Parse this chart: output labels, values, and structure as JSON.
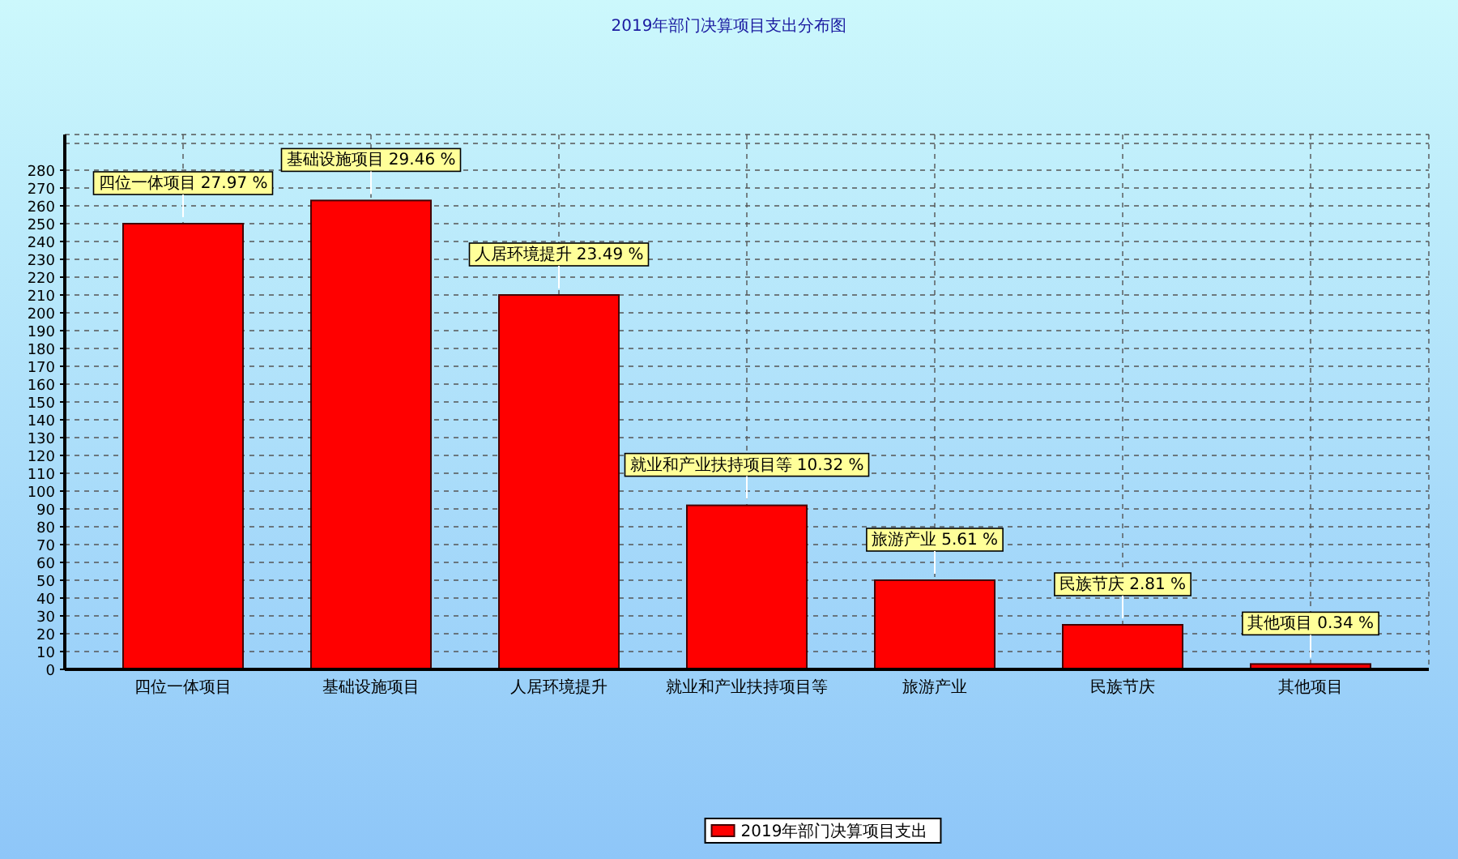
{
  "chart_data": {
    "type": "bar",
    "title": "2019年部门决算项目支出分布图",
    "categories": [
      "四位一体项目",
      "基础设施项目",
      "人居环境提升",
      "就业和产业扶持项目等",
      "旅游产业",
      "民族节庆",
      "其他项目"
    ],
    "series": [
      {
        "name": "2019年部门决算项目支出",
        "color": "#ff0000",
        "values": [
          250,
          263,
          210,
          92,
          50,
          25,
          3
        ]
      }
    ],
    "ylim": [
      0,
      300
    ],
    "yticks": [
      0,
      10,
      20,
      30,
      40,
      50,
      60,
      70,
      80,
      90,
      100,
      110,
      120,
      130,
      140,
      150,
      160,
      170,
      180,
      190,
      200,
      210,
      220,
      230,
      240,
      250,
      260,
      270,
      280
    ],
    "grid": true,
    "legend": "bottom",
    "annotations": [
      {
        "text": "四位一体项目 27.97 %",
        "x": "四位一体项目",
        "y": 250
      },
      {
        "text": "基础设施项目 29.46 %",
        "x": "基础设施项目",
        "y": 263
      },
      {
        "text": "人居环境提升 23.49 %",
        "x": "人居环境提升",
        "y": 210
      },
      {
        "text": "就业和产业扶持项目等 10.32 %",
        "x": "就业和产业扶持项目等",
        "y": 92
      },
      {
        "text": "旅游产业 5.61 %",
        "x": "旅游产业",
        "y": 50
      },
      {
        "text": "民族节庆 2.81 %",
        "x": "民族节庆",
        "y": 25
      },
      {
        "text": "其他项目 0.34 %",
        "x": "其他项目",
        "y": 3
      }
    ]
  }
}
